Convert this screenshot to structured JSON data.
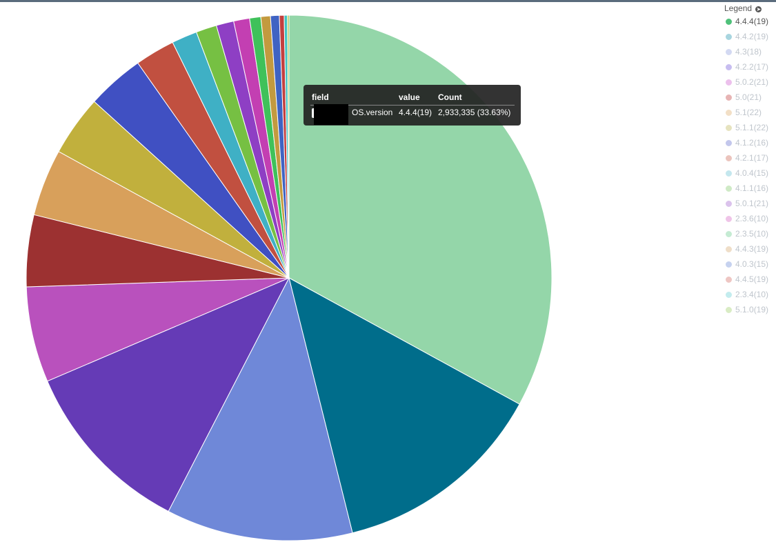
{
  "legend": {
    "title": "Legend",
    "toggle_icon": "arrow-circle-right-icon",
    "items": [
      {
        "label": "4.4.4(19)",
        "color": "#4fc17a",
        "active": true
      },
      {
        "label": "4.4.2(19)",
        "color": "#a8d5df",
        "active": false
      },
      {
        "label": "4.3(18)",
        "color": "#d3d9f2",
        "active": false
      },
      {
        "label": "4.2.2(17)",
        "color": "#c7bdf0",
        "active": false
      },
      {
        "label": "5.0.2(21)",
        "color": "#ecc0ec",
        "active": false
      },
      {
        "label": "5.0(21)",
        "color": "#e7b4b4",
        "active": false
      },
      {
        "label": "5.1(22)",
        "color": "#f2dfc6",
        "active": false
      },
      {
        "label": "5.1.1(22)",
        "color": "#e6e3bf",
        "active": false
      },
      {
        "label": "4.1.2(16)",
        "color": "#c3c7ec",
        "active": false
      },
      {
        "label": "4.2.1(17)",
        "color": "#ebc4bd",
        "active": false
      },
      {
        "label": "4.0.4(15)",
        "color": "#c4e7ee",
        "active": false
      },
      {
        "label": "4.1.1(16)",
        "color": "#cfeac6",
        "active": false
      },
      {
        "label": "5.0.1(21)",
        "color": "#dbc3ec",
        "active": false
      },
      {
        "label": "2.3.6(10)",
        "color": "#efc4e8",
        "active": false
      },
      {
        "label": "2.3.5(10)",
        "color": "#c5ebd3",
        "active": false
      },
      {
        "label": "4.4.3(19)",
        "color": "#efdec8",
        "active": false
      },
      {
        "label": "4.0.3(15)",
        "color": "#c6d2ef",
        "active": false
      },
      {
        "label": "4.4.5(19)",
        "color": "#eec6c3",
        "active": false
      },
      {
        "label": "2.3.4(10)",
        "color": "#c3ecee",
        "active": false
      },
      {
        "label": "5.1.0(19)",
        "color": "#d9ecc4",
        "active": false
      }
    ]
  },
  "tooltip": {
    "headers": {
      "field": "field",
      "value": "value",
      "count": "Count"
    },
    "row": {
      "field": "OS.version",
      "value": "4.4.4(19)",
      "count": "2,933,335 (33.63%)"
    }
  },
  "chart_data": {
    "type": "pie",
    "start_angle_deg": 0,
    "direction": "clockwise",
    "slices": [
      {
        "label": "4.4.4(19)",
        "percent": 33.63,
        "value": 2933335,
        "color": "#94d6a9"
      },
      {
        "label": "",
        "percent": 13.4,
        "color": "#006d8b"
      },
      {
        "label": "",
        "percent": 11.7,
        "color": "#6f88d8"
      },
      {
        "label": "",
        "percent": 11.2,
        "color": "#653bb6"
      },
      {
        "label": "",
        "percent": 6.0,
        "color": "#b951bd"
      },
      {
        "label": "",
        "percent": 4.5,
        "color": "#9c3131"
      },
      {
        "label": "",
        "percent": 4.2,
        "color": "#d8a05b"
      },
      {
        "label": "",
        "percent": 3.8,
        "color": "#c1b03d"
      },
      {
        "label": "",
        "percent": 3.6,
        "color": "#4050c2"
      },
      {
        "label": "",
        "percent": 2.5,
        "color": "#c15040"
      },
      {
        "label": "",
        "percent": 1.6,
        "color": "#3fb0c5"
      },
      {
        "label": "",
        "percent": 1.3,
        "color": "#76c043"
      },
      {
        "label": "",
        "percent": 1.1,
        "color": "#8e3fc4"
      },
      {
        "label": "",
        "percent": 1.0,
        "color": "#c33fb2"
      },
      {
        "label": "",
        "percent": 0.7,
        "color": "#3fc15a"
      },
      {
        "label": "",
        "percent": 0.6,
        "color": "#c39a3f"
      },
      {
        "label": "",
        "percent": 0.55,
        "color": "#3f63c3"
      },
      {
        "label": "",
        "percent": 0.3,
        "color": "#c33f3f"
      },
      {
        "label": "",
        "percent": 0.2,
        "color": "#3fc3c1"
      },
      {
        "label": "",
        "percent": 0.1,
        "color": "#a3c33f"
      }
    ]
  }
}
